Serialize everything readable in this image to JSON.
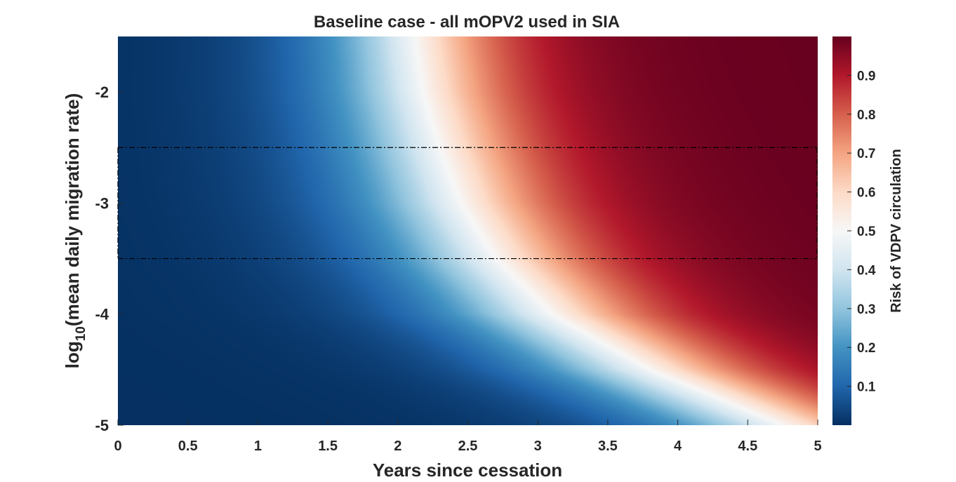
{
  "chart_data": {
    "type": "heatmap",
    "title": "Baseline case - all mOPV2 used in SIA",
    "xlabel": "Years since cessation",
    "ylabel_prefix": "log",
    "ylabel_subscript": "10",
    "ylabel_suffix": "(mean daily migration rate)",
    "xlim": [
      0,
      5
    ],
    "ylim": [
      -5,
      -1.5
    ],
    "x_ticks": [
      0,
      0.5,
      1,
      1.5,
      2,
      2.5,
      3,
      3.5,
      4,
      4.5,
      5
    ],
    "x_tick_labels": [
      "0",
      "0.5",
      "1",
      "1.5",
      "2",
      "2.5",
      "3",
      "3.5",
      "4",
      "4.5",
      "5"
    ],
    "y_ticks": [
      -5,
      -4,
      -3,
      -2
    ],
    "y_tick_labels": [
      "-5",
      "-4",
      "-3",
      "-2"
    ],
    "colorbar": {
      "label": "Risk of VDPV circulation",
      "range": [
        0,
        1
      ],
      "ticks": [
        0.1,
        0.2,
        0.3,
        0.4,
        0.5,
        0.6,
        0.7,
        0.8,
        0.9
      ],
      "tick_labels": [
        "0.1",
        "0.2",
        "0.3",
        "0.4",
        "0.5",
        "0.6",
        "0.7",
        "0.8",
        "0.9"
      ],
      "colormap": [
        "#053061",
        "#2166ac",
        "#4393c3",
        "#92c5de",
        "#d1e5f0",
        "#f7f7f7",
        "#fddbc7",
        "#f4a582",
        "#d6604d",
        "#b2182b",
        "#67001f"
      ]
    },
    "risk_0_5_contour": [
      {
        "y": -1.5,
        "x": 2.12
      },
      {
        "y": -2.0,
        "x": 2.18
      },
      {
        "y": -2.5,
        "x": 2.3
      },
      {
        "y": -3.0,
        "x": 2.45
      },
      {
        "y": -3.5,
        "x": 2.7
      },
      {
        "y": -4.0,
        "x": 3.1
      },
      {
        "y": -4.5,
        "x": 3.8
      },
      {
        "y": -5.0,
        "x": 4.75
      }
    ],
    "reference_band": {
      "y_min": -3.5,
      "y_max": -2.5,
      "x_min": 0,
      "x_max": 5,
      "line_style": "dash-dot",
      "color": "#000000"
    }
  }
}
